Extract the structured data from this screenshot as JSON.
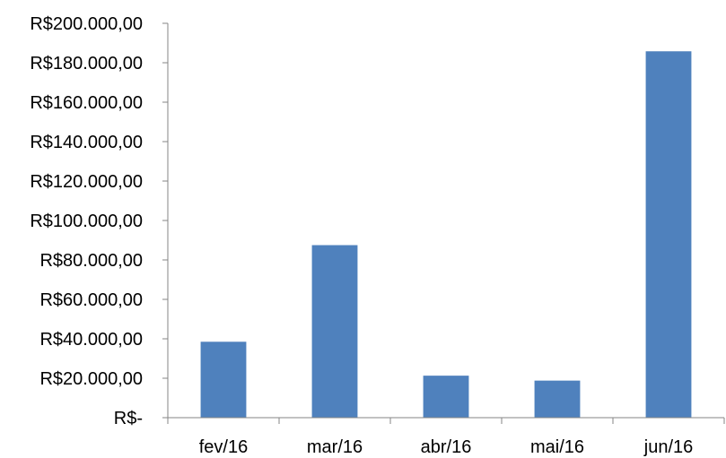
{
  "chart_data": {
    "type": "bar",
    "title": "",
    "xlabel": "",
    "ylabel": "",
    "categories": [
      "fev/16",
      "mar/16",
      "abr/16",
      "mai/16",
      "jun/16"
    ],
    "values": [
      38500,
      87500,
      21300,
      18800,
      185800
    ],
    "ylim": [
      0,
      200000
    ],
    "y_ticks": [
      0,
      20000,
      40000,
      60000,
      80000,
      100000,
      120000,
      140000,
      160000,
      180000,
      200000
    ],
    "y_tick_labels": [
      "R$-",
      "R$20.000,00",
      "R$40.000,00",
      "R$60.000,00",
      "R$80.000,00",
      "R$100.000,00",
      "R$120.000,00",
      "R$140.000,00",
      "R$160.000,00",
      "R$180.000,00",
      "R$200.000,00"
    ],
    "bar_color": "#4F81BD",
    "axis_color": "#868686",
    "grid": false,
    "legend": "none"
  }
}
